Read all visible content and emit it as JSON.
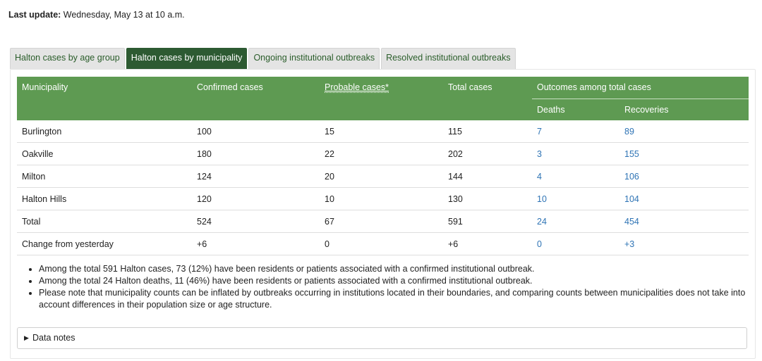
{
  "last_update": {
    "label": "Last update:",
    "value": " Wednesday, May 13 at 10 a.m."
  },
  "tabs": [
    {
      "label": "Halton cases by age group",
      "active": false
    },
    {
      "label": "Halton cases by municipality",
      "active": true
    },
    {
      "label": "Ongoing institutional outbreaks",
      "active": false
    },
    {
      "label": "Resolved institutional outbreaks",
      "active": false
    }
  ],
  "table": {
    "headers": {
      "municipality": "Municipality",
      "confirmed": "Confirmed cases",
      "probable": "Probable cases*",
      "total": "Total cases",
      "outcomes": "Outcomes among total cases",
      "deaths": "Deaths",
      "recoveries": "Recoveries"
    },
    "rows": [
      {
        "municipality": "Burlington",
        "confirmed": "100",
        "probable": "15",
        "total": "115",
        "deaths": "7",
        "recoveries": "89"
      },
      {
        "municipality": "Oakville",
        "confirmed": "180",
        "probable": "22",
        "total": "202",
        "deaths": "3",
        "recoveries": "155"
      },
      {
        "municipality": "Milton",
        "confirmed": "124",
        "probable": "20",
        "total": "144",
        "deaths": "4",
        "recoveries": "106"
      },
      {
        "municipality": "Halton Hills",
        "confirmed": "120",
        "probable": "10",
        "total": "130",
        "deaths": "10",
        "recoveries": "104"
      },
      {
        "municipality": "Total",
        "confirmed": "524",
        "probable": "67",
        "total": "591",
        "deaths": "24",
        "recoveries": "454"
      },
      {
        "municipality": "Change from yesterday",
        "confirmed": "+6",
        "probable": "0",
        "total": "+6",
        "deaths": "0",
        "recoveries": "+3"
      }
    ]
  },
  "notes": [
    "Among the total 591 Halton cases, 73 (12%) have been residents or patients associated with a confirmed institutional outbreak.",
    "Among the total 24 Halton deaths, 11 (46%) have been residents or patients associated with a confirmed institutional outbreak.",
    "Please note that municipality counts can be inflated by outbreaks occurring in institutions located in their boundaries, and comparing counts between municipalities does not take into account differences in their population size or age structure."
  ],
  "data_notes": {
    "label": "Data notes",
    "icon": "triangle-right-icon"
  },
  "colors": {
    "header_green": "#5e9a52",
    "active_tab_green": "#2d5a32",
    "link_blue": "#2f74b5"
  }
}
